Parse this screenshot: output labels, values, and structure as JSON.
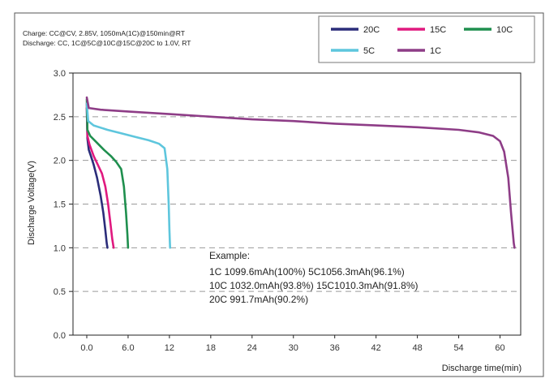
{
  "chart_data": {
    "type": "line",
    "conditions": [
      "Charge: CC@CV, 2.85V, 1050mA(1C)@150min@RT",
      "Discharge: CC, 1C@5C@10C@15C@20C to 1.0V, RT"
    ],
    "xlabel": "Discharge time(min)",
    "ylabel": "Discharge Voltage(V)",
    "xlim": [
      -2,
      63
    ],
    "ylim": [
      0,
      3.0
    ],
    "x_ticks": [
      {
        "value": 0,
        "label": "0.0"
      },
      {
        "value": 6,
        "label": "6.0"
      },
      {
        "value": 12,
        "label": "12"
      },
      {
        "value": 18,
        "label": "18"
      },
      {
        "value": 24,
        "label": "24"
      },
      {
        "value": 30,
        "label": "30"
      },
      {
        "value": 36,
        "label": "36"
      },
      {
        "value": 42,
        "label": "42"
      },
      {
        "value": 48,
        "label": "48"
      },
      {
        "value": 54,
        "label": "54"
      },
      {
        "value": 60,
        "label": "60"
      }
    ],
    "y_ticks": [
      {
        "value": 0.0,
        "label": "0.0"
      },
      {
        "value": 0.5,
        "label": "0.5"
      },
      {
        "value": 1.0,
        "label": "1.0"
      },
      {
        "value": 1.5,
        "label": "1.5"
      },
      {
        "value": 2.0,
        "label": "2.0"
      },
      {
        "value": 2.5,
        "label": "2.5"
      },
      {
        "value": 3.0,
        "label": "3.0"
      }
    ],
    "grid": "horizontal dashed",
    "legend_position": "top-right",
    "series": [
      {
        "name": "20C",
        "color": "#2b2d7a",
        "points": [
          [
            0,
            2.6
          ],
          [
            0.1,
            2.25
          ],
          [
            0.3,
            2.12
          ],
          [
            0.6,
            2.05
          ],
          [
            1.0,
            1.95
          ],
          [
            1.5,
            1.8
          ],
          [
            2.0,
            1.6
          ],
          [
            2.4,
            1.4
          ],
          [
            2.7,
            1.2
          ],
          [
            2.9,
            1.05
          ],
          [
            3.0,
            1.0
          ]
        ]
      },
      {
        "name": "15C",
        "color": "#e0197f",
        "points": [
          [
            0,
            2.65
          ],
          [
            0.1,
            2.28
          ],
          [
            0.4,
            2.18
          ],
          [
            1.0,
            2.05
          ],
          [
            1.6,
            1.95
          ],
          [
            2.2,
            1.85
          ],
          [
            2.7,
            1.7
          ],
          [
            3.1,
            1.5
          ],
          [
            3.4,
            1.3
          ],
          [
            3.7,
            1.1
          ],
          [
            3.9,
            1.0
          ]
        ]
      },
      {
        "name": "10C",
        "color": "#1f8f4e",
        "points": [
          [
            0,
            2.7
          ],
          [
            0.1,
            2.35
          ],
          [
            0.5,
            2.28
          ],
          [
            1.5,
            2.2
          ],
          [
            2.5,
            2.12
          ],
          [
            3.5,
            2.05
          ],
          [
            4.3,
            1.98
          ],
          [
            5.0,
            1.9
          ],
          [
            5.4,
            1.7
          ],
          [
            5.7,
            1.4
          ],
          [
            5.9,
            1.15
          ],
          [
            6.0,
            1.0
          ]
        ]
      },
      {
        "name": "5C",
        "color": "#5ec6dd",
        "points": [
          [
            0,
            2.65
          ],
          [
            0.2,
            2.45
          ],
          [
            1,
            2.4
          ],
          [
            3,
            2.35
          ],
          [
            5,
            2.31
          ],
          [
            7,
            2.27
          ],
          [
            9,
            2.23
          ],
          [
            10.5,
            2.19
          ],
          [
            11.3,
            2.14
          ],
          [
            11.7,
            1.9
          ],
          [
            11.9,
            1.5
          ],
          [
            12.0,
            1.2
          ],
          [
            12.1,
            1.0
          ]
        ]
      },
      {
        "name": "1C",
        "color": "#8e3d87",
        "points": [
          [
            0,
            2.72
          ],
          [
            0.3,
            2.6
          ],
          [
            2,
            2.58
          ],
          [
            6,
            2.56
          ],
          [
            12,
            2.53
          ],
          [
            18,
            2.5
          ],
          [
            24,
            2.47
          ],
          [
            30,
            2.45
          ],
          [
            36,
            2.42
          ],
          [
            42,
            2.4
          ],
          [
            48,
            2.38
          ],
          [
            54,
            2.35
          ],
          [
            57,
            2.32
          ],
          [
            59,
            2.28
          ],
          [
            60,
            2.22
          ],
          [
            60.6,
            2.1
          ],
          [
            61.2,
            1.8
          ],
          [
            61.6,
            1.4
          ],
          [
            62,
            1.05
          ],
          [
            62.1,
            1.0
          ]
        ]
      }
    ],
    "annotation": {
      "title": "Example:",
      "lines": [
        "1C 1099.6mAh(100%)  5C1056.3mAh(96.1%)",
        "10C 1032.0mAh(93.8%) 15C1010.3mAh(91.8%)",
        "20C 991.7mAh(90.2%)"
      ]
    }
  }
}
